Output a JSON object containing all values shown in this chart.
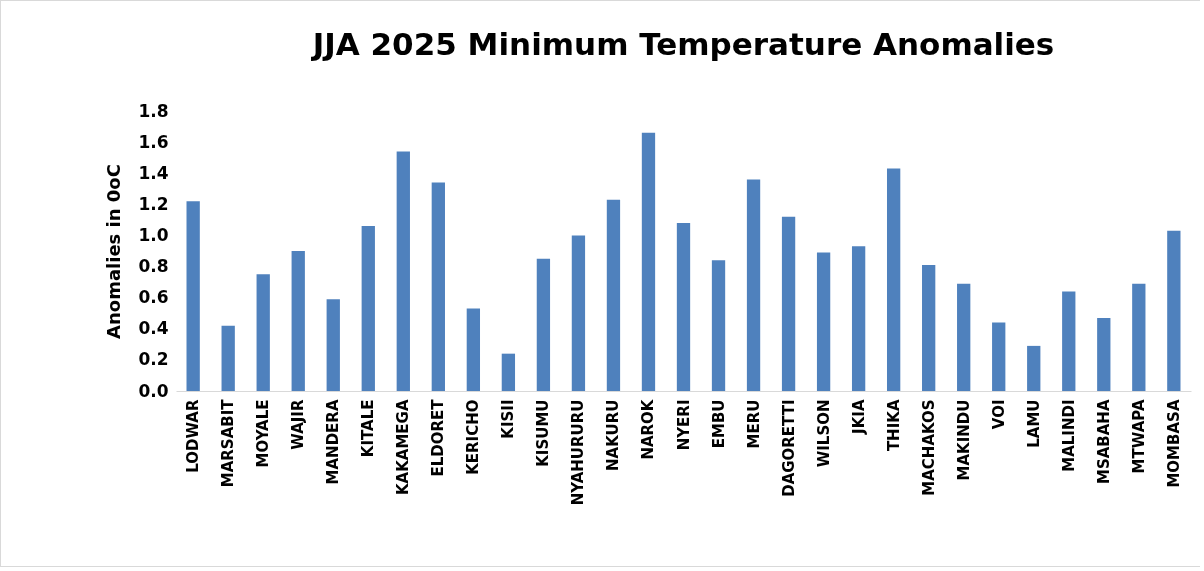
{
  "chart_data": {
    "type": "bar",
    "title": "JJA 2025 Minimum Temperature Anomalies",
    "ylabel": "Anomalies in 0oC",
    "categories": [
      "LODWAR",
      "MARSABIT",
      "MOYALE",
      "WAJIR",
      "MANDERA",
      "KITALE",
      "KAKAMEGA",
      "ELDORET",
      "KERICHO",
      "KISII",
      "KISUMU",
      "NYAHURURU",
      "NAKURU",
      "NAROK",
      "NYERI",
      "EMBU",
      "MERU",
      "DAGORETTI",
      "WILSON",
      "JKIA",
      "THIKA",
      "MACHAKOS",
      "MAKINDU",
      "VOI",
      "LAMU",
      "MALINDI",
      "MSABAHA",
      "MTWAPA",
      "MOMBASA"
    ],
    "values": [
      1.22,
      0.42,
      0.75,
      0.9,
      0.59,
      1.06,
      1.54,
      1.34,
      0.53,
      0.24,
      0.85,
      1.0,
      1.23,
      1.66,
      1.08,
      0.84,
      1.36,
      1.12,
      0.89,
      0.93,
      1.43,
      0.81,
      0.69,
      0.44,
      0.29,
      0.64,
      0.47,
      0.69,
      1.03
    ],
    "color": "#4f81bd",
    "ylim": [
      0,
      1.8
    ],
    "yticks": [
      {
        "value": 0,
        "label": "0.0"
      },
      {
        "value": 0.2,
        "label": "0.2"
      },
      {
        "value": 0.4,
        "label": "0.4"
      },
      {
        "value": 0.6,
        "label": "0.6"
      },
      {
        "value": 0.8,
        "label": "0.8"
      },
      {
        "value": 1.0,
        "label": "1.0"
      },
      {
        "value": 1.2,
        "label": "1.2"
      },
      {
        "value": 1.4,
        "label": "1.4"
      },
      {
        "value": 1.6,
        "label": "1.6"
      },
      {
        "value": 1.8,
        "label": "1.8"
      }
    ],
    "grid": false
  }
}
